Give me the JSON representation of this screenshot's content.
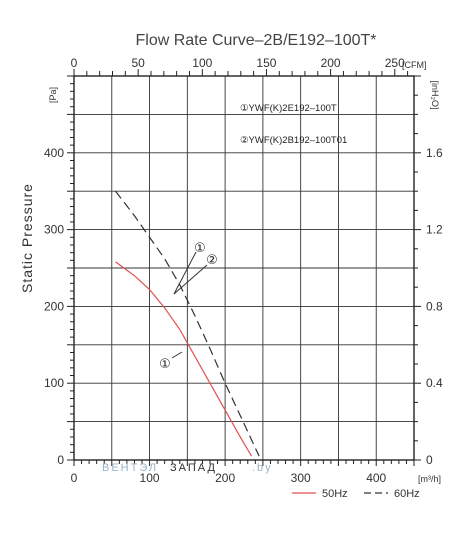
{
  "chart_data": {
    "type": "line",
    "title": "Flow Rate Curve–2B/E192–100T*",
    "ylabel": "Static Pressure",
    "y_unit": "[Pa]",
    "y2_unit": "[inH₂O]",
    "x_unit": "[m³/h]",
    "x2_unit": "[CFM]",
    "xlim": [
      0,
      450
    ],
    "ylim": [
      0,
      500
    ],
    "x2lim": [
      0,
      265
    ],
    "y2lim": [
      0,
      2.0
    ],
    "x_ticks": [
      0,
      100,
      200,
      300,
      400
    ],
    "y_ticks": [
      0,
      100,
      200,
      300,
      400
    ],
    "x2_ticks": [
      0,
      50,
      100,
      150,
      200,
      250
    ],
    "y2_ticks": [
      0,
      0.4,
      0.8,
      1.2,
      1.6
    ],
    "grid": true,
    "series": [
      {
        "name": "50Hz",
        "color": "#e05050",
        "dash": "solid",
        "x": [
          55,
          80,
          100,
          120,
          140,
          160,
          180,
          200,
          220,
          235
        ],
        "y": [
          258,
          240,
          222,
          198,
          170,
          135,
          100,
          65,
          30,
          5
        ]
      },
      {
        "name": "60Hz",
        "color": "#333333",
        "dash": "dashed",
        "x": [
          55,
          80,
          100,
          120,
          140,
          160,
          180,
          200,
          220,
          245
        ],
        "y": [
          350,
          318,
          290,
          262,
          228,
          188,
          145,
          100,
          58,
          5
        ]
      }
    ],
    "annotations": {
      "model_list": [
        "①YWF(K)2E192–100T",
        "②YWF(K)2B192–100T01"
      ],
      "callout_a": "①",
      "callout_b": "②",
      "callout_c": "①"
    },
    "legend_position": "bottom-right"
  },
  "watermark": {
    "text_a": "ВЕНТЭЛ",
    "text_b": "ЗАПАД",
    "text_c": ".by"
  }
}
